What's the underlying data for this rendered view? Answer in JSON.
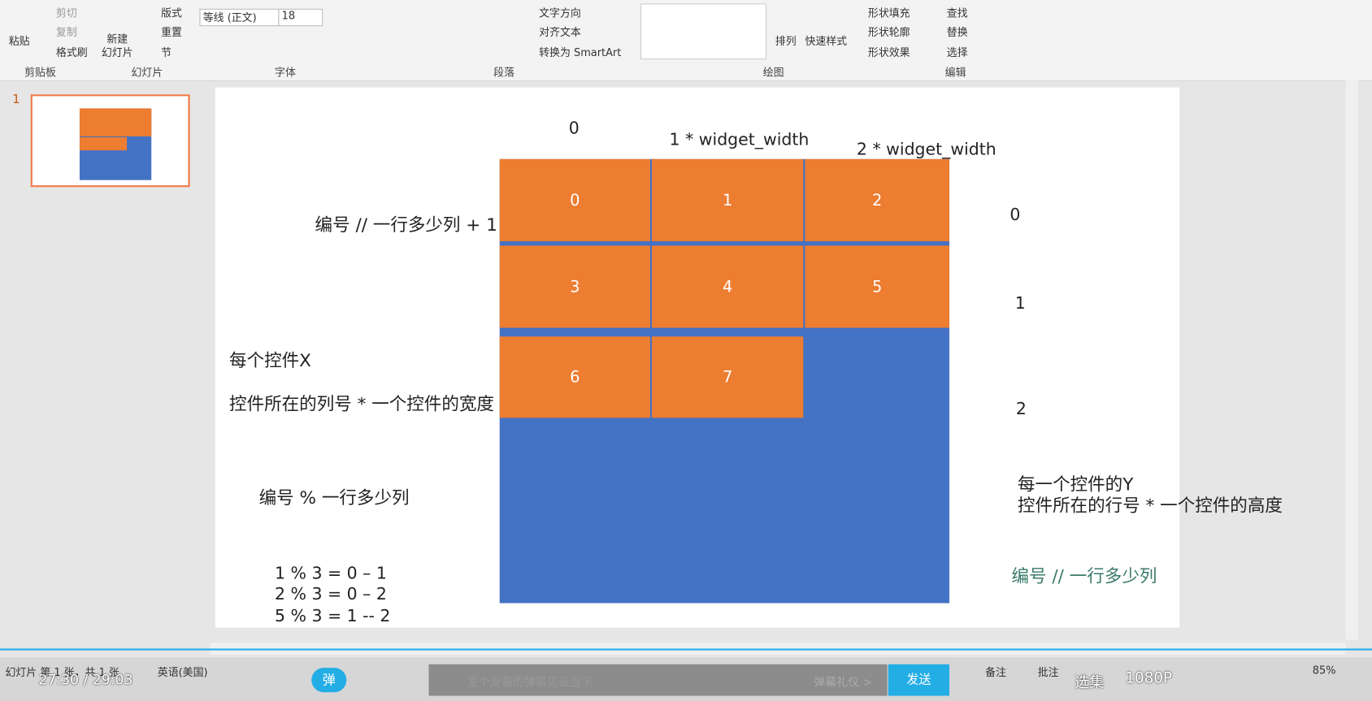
{
  "ribbon": {
    "clipboard": {
      "paste": "粘贴",
      "cut": "剪切",
      "copy": "复制",
      "format_painter": "格式刷",
      "label": "剪贴板"
    },
    "slides": {
      "new_slide": "新建\n幻灯片",
      "layout": "版式",
      "reset": "重置",
      "section": "节",
      "label": "幻灯片"
    },
    "font": {
      "font_name": "等线 (正文)",
      "font_size": "18",
      "label": "字体"
    },
    "paragraph": {
      "text_direction": "文字方向",
      "align_text": "对齐文本",
      "smartart": "转换为 SmartArt",
      "label": "段落"
    },
    "drawing": {
      "arrange": "排列",
      "quick_styles": "快速样式",
      "shape_fill": "形状填充",
      "shape_outline": "形状轮廓",
      "shape_effects": "形状效果",
      "label": "绘图"
    },
    "editing": {
      "find": "查找",
      "replace": "替换",
      "select": "选择",
      "label": "编辑"
    }
  },
  "thumbnail": {
    "number": "1"
  },
  "slide": {
    "column_labels": [
      "0",
      "1 * widget_width",
      "2 * widget_width"
    ],
    "cells": [
      "0",
      "1",
      "2",
      "3",
      "4",
      "5",
      "6",
      "7"
    ],
    "row_labels": [
      "0",
      "1",
      "2"
    ],
    "left_texts": [
      "编号 // 一行多少列 + 1",
      "每个控件X",
      "控件所在的列号 * 一个控件的宽度",
      "编号 % 一行多少列"
    ],
    "examples": [
      "1 % 3 = 0 – 1",
      "2 % 3 = 0 – 2",
      "5 % 3 = 1 -- 2"
    ],
    "right_texts": [
      "每一个控件的Y",
      "控件所在的行号 * 一个控件的高度",
      "编号  //  一行多少列"
    ]
  },
  "status_bar": {
    "slide_info": "幻灯片 第 1 张，共 1 张",
    "language": "英语(美国)",
    "notes": "备注",
    "comments": "批注",
    "zoom": "85%"
  },
  "player": {
    "time": "27:30 / 29:03",
    "danmaku_toggle": "弹",
    "danmaku_placeholder": "发个友善的弹幕见证当下",
    "danmaku_etiquette": "弹幕礼仪 >",
    "send": "发送",
    "episodes": "选集",
    "quality": "1080P"
  }
}
